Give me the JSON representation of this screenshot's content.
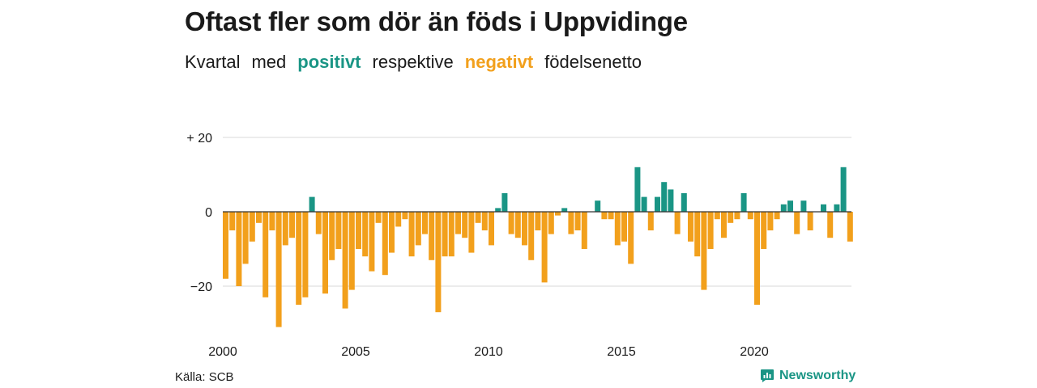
{
  "header": {
    "title": "Oftast fler som dör än föds i Uppvidinge",
    "subtitle_words": [
      "Kvartal",
      "med",
      "positivt",
      "respektive",
      "negativt",
      "födelsenetto"
    ]
  },
  "footer": {
    "source": "Källa: SCB",
    "brand": "Newsworthy"
  },
  "colors": {
    "positive": "#1a9585",
    "negative": "#f2a01c",
    "grid": "#d9d9d9",
    "zero_line": "#333333"
  },
  "chart_data": {
    "type": "bar",
    "title": "Oftast fler som dör än föds i Uppvidinge",
    "subtitle": "Kvartal med positivt respektive negativt födelsenetto",
    "xlabel": "",
    "ylabel": "",
    "x_start": "2000 Q1",
    "quarters_per_year": 4,
    "x_ticks": [
      "2000",
      "2005",
      "2010",
      "2015",
      "2020"
    ],
    "y_ticks": [
      20,
      0,
      -20
    ],
    "y_tick_labels": [
      "+ 20",
      "0",
      "−20"
    ],
    "ylim": [
      -32,
      20
    ],
    "grid": true,
    "values": [
      -18,
      -5,
      -20,
      -14,
      -8,
      -3,
      -23,
      -5,
      -31,
      -9,
      -7,
      -25,
      -23,
      4,
      -6,
      -22,
      -13,
      -10,
      -26,
      -21,
      -10,
      -12,
      -16,
      -3,
      -17,
      -11,
      -4,
      -2,
      -12,
      -9,
      -6,
      -13,
      -27,
      -12,
      -12,
      -6,
      -7,
      -11,
      -3,
      -5,
      -9,
      1,
      5,
      -6,
      -7,
      -9,
      -13,
      -5,
      -19,
      -6,
      -1,
      1,
      -6,
      -5,
      -10,
      0,
      3,
      -2,
      -2,
      -9,
      -8,
      -14,
      12,
      4,
      -5,
      4,
      8,
      6,
      -6,
      5,
      -8,
      -12,
      -21,
      -10,
      -2,
      -7,
      -3,
      -2,
      5,
      -2,
      -25,
      -10,
      -5,
      -2,
      2,
      3,
      -6,
      3,
      -5,
      0,
      2,
      -7,
      2,
      12,
      -8
    ]
  }
}
